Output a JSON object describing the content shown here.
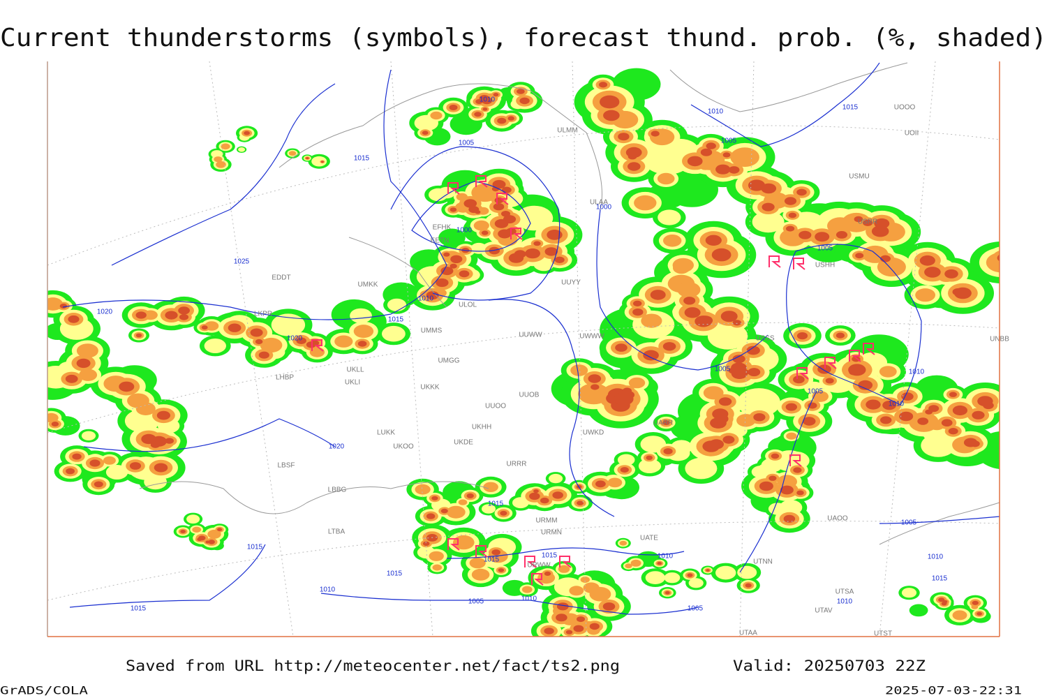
{
  "header": {
    "title": "Current thunderstorms (symbols), forecast thund. prob. (%, shaded)"
  },
  "footer": {
    "source": "Saved from URL http://meteocenter.net/fact/ts2.png",
    "valid": "Valid: 20250703 22Z",
    "credit": "GrADS/COLA",
    "timestamp": "2025-07-03-22:31"
  },
  "isobar_labels": [
    "1010",
    "1005",
    "1015",
    "1000",
    "1025",
    "1020",
    "1010",
    "1015",
    "1020",
    "1020",
    "1005",
    "1005",
    "1005",
    "1005",
    "1010",
    "1010",
    "1015",
    "1015",
    "1015",
    "1015",
    "1010",
    "1015",
    "1005",
    "1010",
    "1015",
    "1005",
    "1010",
    "1010",
    "1015",
    "1010",
    "1000",
    "1015",
    "1005",
    "1010"
  ],
  "station_labels": [
    "ULMM",
    "ULAA",
    "EFHK",
    "EETN",
    "UMKK",
    "EDDT",
    "LKPR",
    "LHBP",
    "UKLL",
    "UKLI",
    "ULOL",
    "UUYY",
    "UUWW",
    "UMMS",
    "UMGG",
    "UKKK",
    "UUOO",
    "UUOB",
    "LUKK",
    "UKOO",
    "UKDE",
    "UKHH",
    "LBSF",
    "LBBG",
    "LTBA",
    "URRR",
    "URMM",
    "URMN",
    "URWW",
    "UWWW",
    "UARR",
    "UATE",
    "UAOO",
    "UTNN",
    "UTAA",
    "UTSA",
    "UTAV",
    "UTST",
    "USHH",
    "USMU",
    "USRR",
    "UOOO",
    "UOII",
    "UNBB",
    "USSS",
    "UWKD"
  ]
}
